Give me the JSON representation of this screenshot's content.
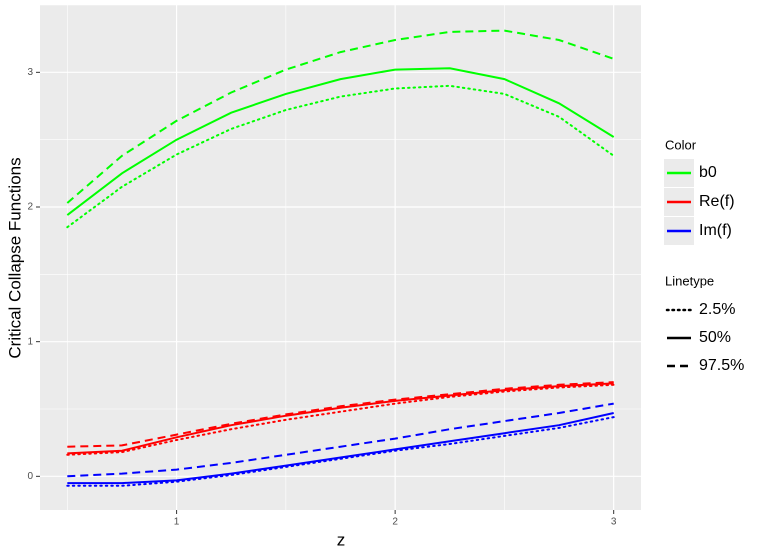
{
  "chart_data": {
    "type": "line",
    "xlabel": "z",
    "ylabel": "Critical Collapse Functions",
    "x": [
      0.5,
      0.75,
      1,
      1.25,
      1.5,
      1.75,
      2,
      2.25,
      2.5,
      2.75,
      3
    ],
    "xlim": [
      0.375,
      3.125
    ],
    "xticks": [
      1,
      2,
      3
    ],
    "ylim": [
      -0.25,
      3.5
    ],
    "yticks": [
      0,
      1,
      2,
      3
    ],
    "grid": true,
    "color_legend_title": "Color",
    "linetype_legend_title": "Linetype",
    "linetypes": [
      {
        "name": "2.5%",
        "dash": "dotted"
      },
      {
        "name": "50%",
        "dash": "solid"
      },
      {
        "name": "97.5%",
        "dash": "dashed"
      }
    ],
    "groups": [
      {
        "name": "b0",
        "color": "#00ff00",
        "values": [
          [
            1.85,
            2.15,
            2.39,
            2.58,
            2.72,
            2.82,
            2.88,
            2.9,
            2.84,
            2.67,
            2.38
          ],
          [
            1.94,
            2.25,
            2.5,
            2.7,
            2.84,
            2.95,
            3.02,
            3.03,
            2.95,
            2.77,
            2.52
          ],
          [
            2.03,
            2.38,
            2.64,
            2.85,
            3.02,
            3.15,
            3.24,
            3.3,
            3.31,
            3.24,
            3.1
          ]
        ]
      },
      {
        "name": "Re(f)",
        "color": "#ff0000",
        "values": [
          [
            0.16,
            0.18,
            0.27,
            0.35,
            0.42,
            0.48,
            0.54,
            0.59,
            0.63,
            0.66,
            0.68
          ],
          [
            0.17,
            0.19,
            0.29,
            0.38,
            0.45,
            0.51,
            0.56,
            0.6,
            0.64,
            0.67,
            0.69
          ],
          [
            0.22,
            0.23,
            0.31,
            0.39,
            0.46,
            0.52,
            0.57,
            0.61,
            0.65,
            0.68,
            0.7
          ]
        ]
      },
      {
        "name": "Im(f)",
        "color": "#0000ff",
        "values": [
          [
            -0.07,
            -0.07,
            -0.04,
            0.01,
            0.07,
            0.13,
            0.19,
            0.24,
            0.3,
            0.36,
            0.44
          ],
          [
            -0.05,
            -0.05,
            -0.03,
            0.02,
            0.08,
            0.14,
            0.2,
            0.26,
            0.32,
            0.38,
            0.47
          ],
          [
            0,
            0.02,
            0.05,
            0.1,
            0.16,
            0.22,
            0.28,
            0.35,
            0.41,
            0.47,
            0.54
          ]
        ]
      }
    ]
  }
}
